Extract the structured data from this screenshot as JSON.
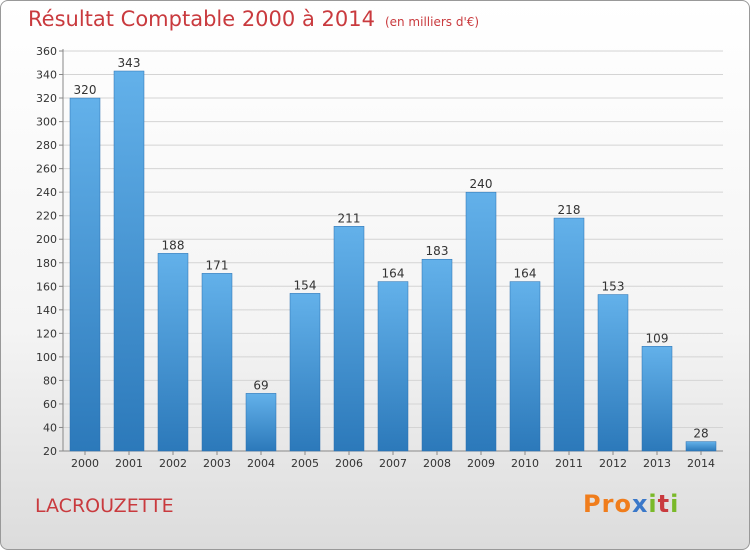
{
  "title": "Résultat Comptable 2000 à 2014",
  "subtitle": "(en milliers d'€)",
  "commune": "LACROUZETTE",
  "logo": {
    "letters": [
      "P",
      "r",
      "o",
      "x",
      "i",
      "t",
      "i"
    ],
    "colors": [
      "#f07d1c",
      "#f07d1c",
      "#f07d1c",
      "#3a78c9",
      "#7ab929",
      "#c93a3e",
      "#7ab929"
    ]
  },
  "colors": {
    "bar_top": "#63b1ea",
    "bar_bottom": "#2c79ba",
    "title": "#c93a3e",
    "grid": "#d4d4d4"
  },
  "chart_data": {
    "type": "bar",
    "title": "Résultat Comptable 2000 à 2014",
    "ylabel": "(en milliers d'€)",
    "categories": [
      "2000",
      "2001",
      "2002",
      "2003",
      "2004",
      "2005",
      "2006",
      "2007",
      "2008",
      "2009",
      "2010",
      "2011",
      "2012",
      "2013",
      "2014"
    ],
    "values": [
      320,
      343,
      188,
      171,
      69,
      154,
      211,
      164,
      183,
      240,
      164,
      218,
      153,
      109,
      28
    ],
    "ylim": [
      20,
      360
    ],
    "yticks": [
      20,
      40,
      60,
      80,
      100,
      120,
      140,
      160,
      180,
      200,
      220,
      240,
      260,
      280,
      300,
      320,
      340,
      360
    ],
    "grid": true
  }
}
